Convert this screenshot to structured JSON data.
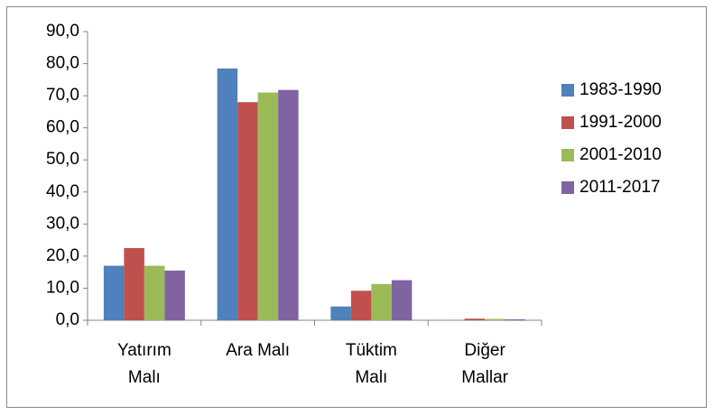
{
  "chart_data": {
    "type": "bar",
    "categories": [
      "Yatırım\nMalı",
      "Ara Malı",
      "Tüktim\nMalı",
      "Diğer\nMallar"
    ],
    "series": [
      {
        "name": "1983-1990",
        "color": "#4f81bd",
        "values": [
          17.0,
          78.5,
          4.3,
          0.1
        ]
      },
      {
        "name": "1991-2000",
        "color": "#c0504d",
        "values": [
          22.5,
          68.0,
          9.2,
          0.5
        ]
      },
      {
        "name": "2001-2010",
        "color": "#9bbb59",
        "values": [
          17.0,
          71.0,
          11.3,
          0.4
        ]
      },
      {
        "name": "2011-2017",
        "color": "#8064a2",
        "values": [
          15.5,
          71.8,
          12.5,
          0.3
        ]
      }
    ],
    "ylim": [
      0,
      90
    ],
    "yticks": [
      {
        "value": 0,
        "label": "0,0"
      },
      {
        "value": 10,
        "label": "10,0"
      },
      {
        "value": 20,
        "label": "20,0"
      },
      {
        "value": 30,
        "label": "30,0"
      },
      {
        "value": 40,
        "label": "40,0"
      },
      {
        "value": 50,
        "label": "50,0"
      },
      {
        "value": 60,
        "label": "60,0"
      },
      {
        "value": 70,
        "label": "70,0"
      },
      {
        "value": 80,
        "label": "80,0"
      },
      {
        "value": 90,
        "label": "90,0"
      }
    ],
    "legend": "right",
    "grid": false
  }
}
